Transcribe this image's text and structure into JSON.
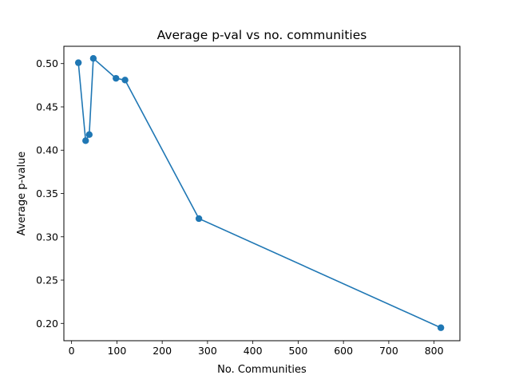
{
  "chart_data": {
    "type": "line",
    "title": "Average p-val vs no. communities",
    "xlabel": "No. Communities",
    "ylabel": "Average p-value",
    "xlim": [
      -17,
      857
    ],
    "ylim": [
      0.18,
      0.52
    ],
    "xticks": [
      0,
      100,
      200,
      300,
      400,
      500,
      600,
      700,
      800
    ],
    "yticks": [
      0.2,
      0.25,
      0.3,
      0.35,
      0.4,
      0.45,
      0.5
    ],
    "grid": false,
    "series": [
      {
        "color": "#1f77b4",
        "marker": "circle",
        "points": [
          {
            "x": 15,
            "y": 0.501
          },
          {
            "x": 31,
            "y": 0.411
          },
          {
            "x": 39,
            "y": 0.418
          },
          {
            "x": 48,
            "y": 0.506
          },
          {
            "x": 98,
            "y": 0.483
          },
          {
            "x": 118,
            "y": 0.481
          },
          {
            "x": 281,
            "y": 0.321
          },
          {
            "x": 815,
            "y": 0.195
          }
        ]
      }
    ]
  }
}
